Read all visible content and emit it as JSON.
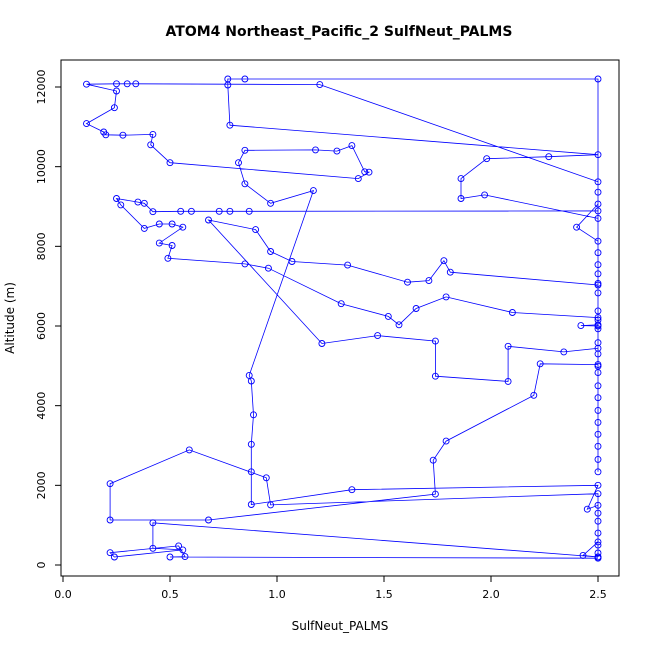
{
  "chart_data": {
    "type": "line",
    "title": "ATOM4 Northeast_Pacific_2 SulfNeut_PALMS",
    "xlabel": "SulfNeut_PALMS",
    "ylabel": "Altitude (m)",
    "xlim": [
      0,
      2.55
    ],
    "ylim": [
      -150,
      12700
    ],
    "xticks": [
      0.0,
      0.5,
      1.0,
      1.5,
      2.0,
      2.5
    ],
    "xtick_labels": [
      "0.0",
      "0.5",
      "1.0",
      "1.5",
      "2.0",
      "2.5"
    ],
    "yticks": [
      0,
      2000,
      4000,
      6000,
      8000,
      10000,
      12000
    ],
    "ytick_labels": [
      "0",
      "2000",
      "4000",
      "6000",
      "8000",
      "10000",
      "12000"
    ],
    "series_color": "#0000ff",
    "marker": "open-circle",
    "points": [
      [
        2.5,
        200
      ],
      [
        2.5,
        300
      ],
      [
        2.5,
        500
      ],
      [
        2.5,
        800
      ],
      [
        2.5,
        1100
      ],
      [
        2.5,
        1300
      ],
      [
        2.5,
        1500
      ],
      [
        2.45,
        1400
      ],
      [
        2.5,
        2000
      ],
      [
        1.35,
        1890
      ],
      [
        0.88,
        1520
      ],
      [
        0.88,
        2340
      ],
      [
        0.88,
        3030
      ],
      [
        0.89,
        3770
      ],
      [
        0.88,
        4620
      ],
      [
        0.87,
        4760
      ],
      [
        1.17,
        9400
      ],
      [
        0.97,
        9080
      ],
      [
        0.85,
        9570
      ],
      [
        0.82,
        10100
      ],
      [
        0.85,
        10410
      ],
      [
        1.18,
        10420
      ],
      [
        1.28,
        10390
      ],
      [
        1.35,
        10530
      ],
      [
        1.41,
        9870
      ],
      [
        1.43,
        9860
      ],
      [
        1.38,
        9700
      ],
      [
        0.5,
        10100
      ],
      [
        0.41,
        10550
      ],
      [
        0.42,
        10810
      ],
      [
        0.28,
        10790
      ],
      [
        0.2,
        10800
      ],
      [
        0.19,
        10870
      ],
      [
        0.11,
        11080
      ],
      [
        0.24,
        11480
      ],
      [
        0.25,
        11900
      ],
      [
        0.11,
        12070
      ],
      [
        0.25,
        12080
      ],
      [
        0.3,
        12080
      ],
      [
        0.34,
        12080
      ],
      [
        1.2,
        12060
      ],
      [
        2.5,
        9620
      ],
      [
        2.5,
        9360
      ],
      [
        2.5,
        9060
      ],
      [
        2.4,
        8480
      ],
      [
        2.5,
        8130
      ],
      [
        2.5,
        7840
      ],
      [
        2.5,
        7540
      ],
      [
        2.5,
        7310
      ],
      [
        2.5,
        7070
      ],
      [
        2.5,
        6830
      ],
      [
        2.5,
        6380
      ],
      [
        2.5,
        6150
      ],
      [
        2.5,
        5930
      ],
      [
        2.5,
        5580
      ],
      [
        2.5,
        5300
      ],
      [
        2.5,
        4990
      ],
      [
        2.5,
        4830
      ],
      [
        2.5,
        4500
      ],
      [
        2.5,
        4200
      ],
      [
        2.5,
        3880
      ],
      [
        2.5,
        3580
      ],
      [
        2.5,
        3280
      ],
      [
        2.5,
        2980
      ],
      [
        2.5,
        2650
      ],
      [
        2.5,
        2340
      ],
      [
        2.5,
        12200
      ],
      [
        0.85,
        12200
      ],
      [
        0.77,
        12200
      ],
      [
        0.77,
        12050
      ],
      [
        0.78,
        11040
      ],
      [
        2.5,
        10300
      ],
      [
        2.27,
        10250
      ],
      [
        1.98,
        10200
      ],
      [
        1.86,
        9700
      ],
      [
        1.86,
        9200
      ],
      [
        1.97,
        9290
      ],
      [
        2.5,
        8700
      ],
      [
        2.5,
        8890
      ],
      [
        0.87,
        8880
      ],
      [
        0.78,
        8880
      ],
      [
        0.73,
        8880
      ],
      [
        0.6,
        8880
      ],
      [
        0.55,
        8880
      ],
      [
        0.42,
        8870
      ],
      [
        0.38,
        9080
      ],
      [
        0.35,
        9110
      ],
      [
        0.25,
        9200
      ],
      [
        0.27,
        9040
      ],
      [
        0.38,
        8450
      ],
      [
        0.45,
        8560
      ],
      [
        0.51,
        8560
      ],
      [
        0.56,
        8480
      ],
      [
        0.45,
        8080
      ],
      [
        0.51,
        8020
      ],
      [
        0.49,
        7700
      ],
      [
        0.85,
        7560
      ],
      [
        0.96,
        7450
      ],
      [
        1.3,
        6560
      ],
      [
        1.52,
        6240
      ],
      [
        1.57,
        6030
      ],
      [
        1.65,
        6440
      ],
      [
        1.79,
        6730
      ],
      [
        2.1,
        6340
      ],
      [
        2.5,
        6210
      ],
      [
        2.5,
        5440
      ],
      [
        2.34,
        5350
      ],
      [
        2.08,
        5490
      ],
      [
        2.08,
        4610
      ],
      [
        1.74,
        4740
      ],
      [
        1.74,
        5620
      ],
      [
        1.47,
        5760
      ],
      [
        1.21,
        5560
      ],
      [
        0.68,
        8660
      ],
      [
        0.9,
        8420
      ],
      [
        0.97,
        7870
      ],
      [
        1.07,
        7620
      ],
      [
        1.33,
        7530
      ],
      [
        1.61,
        7100
      ],
      [
        1.71,
        7140
      ],
      [
        1.78,
        7640
      ],
      [
        1.81,
        7350
      ],
      [
        2.5,
        7030
      ],
      [
        2.5,
        6000
      ],
      [
        2.42,
        6010
      ],
      [
        2.5,
        6030
      ],
      [
        2.5,
        5030
      ],
      [
        2.23,
        5050
      ],
      [
        2.2,
        4260
      ],
      [
        1.79,
        3110
      ],
      [
        1.73,
        2630
      ],
      [
        1.74,
        1780
      ],
      [
        0.68,
        1130
      ],
      [
        0.22,
        1130
      ],
      [
        0.22,
        2040
      ],
      [
        0.59,
        2890
      ],
      [
        0.95,
        2190
      ],
      [
        0.97,
        1510
      ],
      [
        2.5,
        1790
      ],
      [
        2.5,
        580
      ],
      [
        2.43,
        240
      ],
      [
        2.5,
        200
      ],
      [
        0.42,
        1060
      ],
      [
        0.42,
        420
      ],
      [
        0.56,
        380
      ],
      [
        0.24,
        200
      ],
      [
        0.22,
        310
      ],
      [
        0.54,
        480
      ],
      [
        0.57,
        210
      ],
      [
        0.5,
        200
      ],
      [
        2.5,
        170
      ]
    ]
  }
}
